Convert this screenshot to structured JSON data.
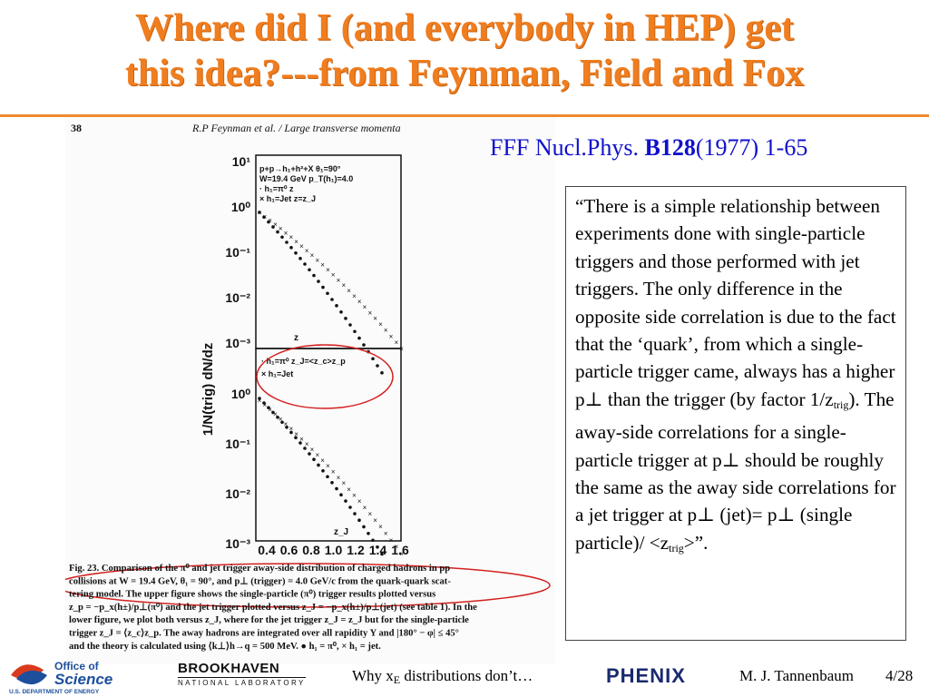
{
  "title_line1": "Where did I (and everybody in HEP) get",
  "title_line2": "this idea?---from Feynman, Field and Fox",
  "citation": {
    "prefix": "FFF Nucl.Phys. ",
    "volume": "B128",
    "suffix": "(1977) 1-65"
  },
  "scan": {
    "page_number": "38",
    "running_head": "R.P  Feynman et al. / Large transverse momenta",
    "y_axis_label": "1/N(trig)  dN/dz",
    "y_ticks_top": [
      "10¹",
      "10⁰",
      "10⁻¹",
      "10⁻²",
      "10⁻³"
    ],
    "y_ticks_bottom": [
      "10⁰",
      "10⁻¹",
      "10⁻²",
      "10⁻³"
    ],
    "x_ticks": [
      "0.4",
      "0.6",
      "0.8",
      "1.0",
      "1.2",
      "1.4",
      "1.6"
    ],
    "legend_top": [
      "p+p→h₁+h²+X   θ₁=90°",
      "W=19.4  GeV   p_T(h₁)=4.0",
      "·  h₁=π⁰   z",
      "×  h₁=Jet   z=z_J"
    ],
    "top_axis_mark": "z",
    "legend_bottom": [
      "·  h₁=π⁰    z_J=<z_c>z_p",
      "×  h₁=Jet"
    ],
    "bottom_axis_mark": "z_J",
    "caption": [
      "Fig. 23. Comparison of the π⁰ and jet trigger away-side distribution of charged hadrons in pp",
      "collisions at W = 19.4 GeV, θ₁ = 90°, and p⊥ (trigger) = 4.0 GeV/c from the quark-quark scat-",
      "tering model. The upper figure shows the single-particle (π⁰) trigger results plotted versus",
      "z_p = −p_x(h±)/p⊥(π⁰) and the jet trigger plotted versus z_J = −p_x(h±)/p⊥(jet) (see table 1). In the",
      "lower figure, we plot both versus z_J, where for the jet trigger z_J = z_J but for the single-particle",
      "trigger z_J = ⟨z_c⟩z_p. The away hadrons are integrated over all rapidity Y and |180° − φ| ≤ 45°",
      "and the theory is calculated using ⟨k⊥⟩h→q = 500 MeV. ● h₁ = π⁰, × h₁ = jet."
    ]
  },
  "quote_html_parts": {
    "l1": "“There is a simple relationship between experiments done with single-particle triggers and those performed with jet triggers. The only difference in the opposite side correlation is due to the fact that the ‘quark’, from which a single-particle trigger came, always has a higher p",
    "perp": "⊥",
    "l2": " than the trigger (by factor 1/z",
    "trig": "trig",
    "l3": "). The away-side correlations for a single-particle trigger at p",
    "l4": " should be roughly the same as the away side correlations for a jet trigger at p",
    "l5": " (jet)= p",
    "l6": " (single particle)/ <z",
    "l7": ">”."
  },
  "footer": {
    "office_of": "Office of",
    "science": "Science",
    "doe": "U.S. DEPARTMENT OF ENERGY",
    "bnl_name": "BROOKHAVEN",
    "bnl_sub": "NATIONAL LABORATORY",
    "slide_title_a": "Why x",
    "slide_title_sub": "E",
    "slide_title_b": " distributions don’t…",
    "phenix": "PHENIX",
    "author": "M. J. Tannenbaum",
    "page": "4/28"
  },
  "colors": {
    "title": "#f07d1e",
    "citation": "#1010cc",
    "ellipse": "#d42020",
    "phenix": "#1a2a6e"
  }
}
